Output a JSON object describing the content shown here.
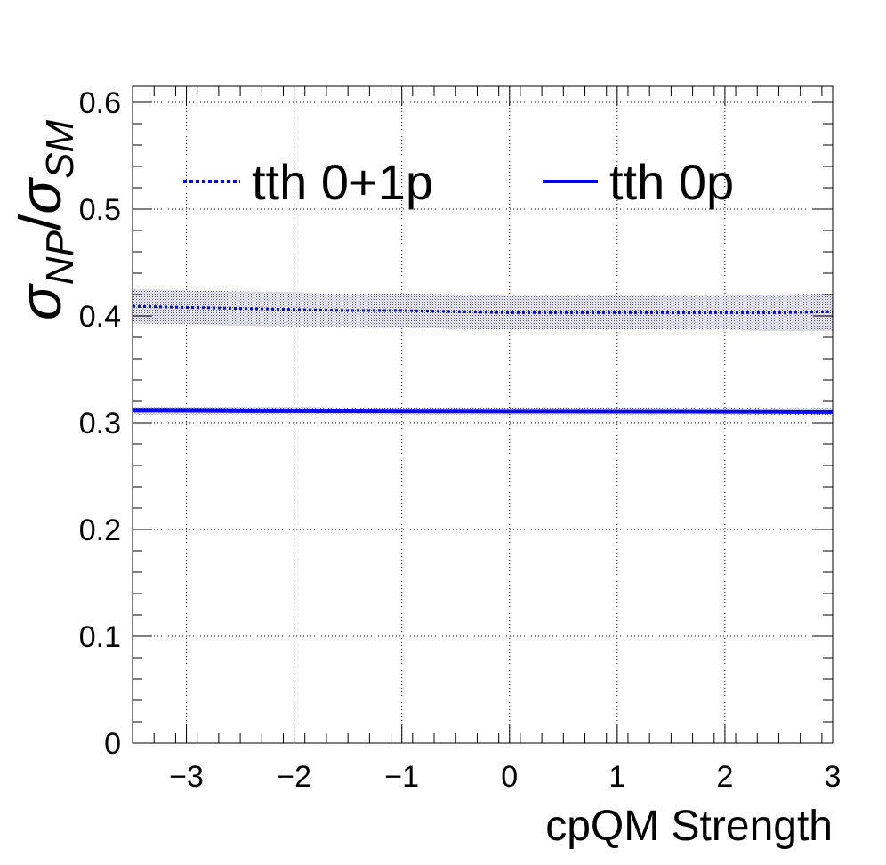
{
  "chart_data": {
    "type": "line",
    "xlabel": "cpQM Strength",
    "ylabel": {
      "sym1": "σ",
      "sub1": "NP",
      "slash": "/",
      "sym2": "σ",
      "sub2": "SM"
    },
    "xlim": [
      -3.5,
      3.0
    ],
    "ylim": [
      0,
      0.615
    ],
    "x_ticks": [
      -3,
      -2,
      -1,
      0,
      1,
      2,
      3
    ],
    "x_tick_labels": [
      "−3",
      "−2",
      "−1",
      "0",
      "1",
      "2",
      "3"
    ],
    "y_ticks": [
      0,
      0.1,
      0.2,
      0.3,
      0.4,
      0.5,
      0.6
    ],
    "y_tick_labels": [
      "0",
      "0.1",
      "0.2",
      "0.3",
      "0.4",
      "0.5",
      "0.6"
    ],
    "grid": true,
    "legend_position": "top",
    "series": [
      {
        "name": "tth 0+1p",
        "style": "dotted",
        "color": "#0000ff",
        "band_color": "#2a2aa6",
        "x": [
          -3.5,
          -3.0,
          -2.5,
          -2.0,
          -1.5,
          -1.0,
          -0.5,
          0.0,
          0.5,
          1.0,
          1.5,
          2.0,
          2.5,
          3.0
        ],
        "y": [
          0.409,
          0.408,
          0.407,
          0.406,
          0.405,
          0.405,
          0.404,
          0.403,
          0.403,
          0.403,
          0.403,
          0.403,
          0.403,
          0.404
        ],
        "y_low": [
          0.393,
          0.392,
          0.391,
          0.39,
          0.389,
          0.389,
          0.388,
          0.387,
          0.387,
          0.387,
          0.387,
          0.387,
          0.386,
          0.386
        ],
        "y_high": [
          0.425,
          0.424,
          0.423,
          0.422,
          0.421,
          0.421,
          0.42,
          0.419,
          0.419,
          0.419,
          0.419,
          0.419,
          0.42,
          0.421
        ]
      },
      {
        "name": "tth 0p",
        "style": "solid",
        "color": "#0000ff",
        "band_color": "#2a2aa6",
        "x": [
          -3.5,
          -3.0,
          -2.5,
          -2.0,
          -1.5,
          -1.0,
          -0.5,
          0.0,
          0.5,
          1.0,
          1.5,
          2.0,
          2.5,
          3.0
        ],
        "y": [
          0.3115,
          0.3113,
          0.3111,
          0.3109,
          0.3108,
          0.3107,
          0.3106,
          0.3105,
          0.3105,
          0.3104,
          0.3104,
          0.3103,
          0.3102,
          0.3101
        ],
        "y_low": [
          0.308,
          0.308,
          0.308,
          0.308,
          0.308,
          0.308,
          0.308,
          0.308,
          0.308,
          0.308,
          0.308,
          0.308,
          0.307,
          0.307
        ],
        "y_high": [
          0.315,
          0.315,
          0.315,
          0.315,
          0.314,
          0.314,
          0.314,
          0.314,
          0.314,
          0.314,
          0.314,
          0.314,
          0.313,
          0.313
        ]
      }
    ]
  }
}
